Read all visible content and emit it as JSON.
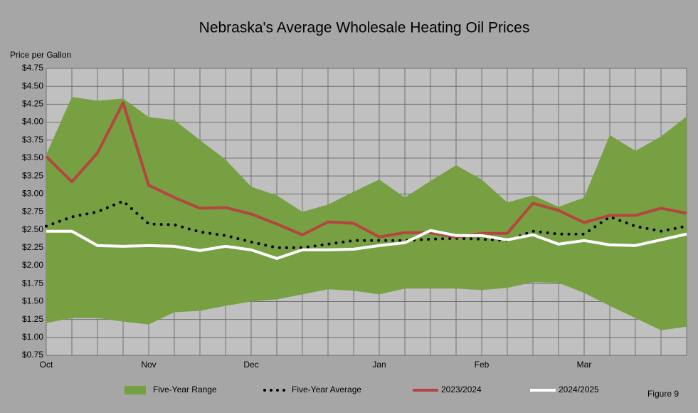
{
  "chart_data": {
    "type": "line",
    "title": "Nebraska's Average Wholesale Heating Oil Prices",
    "y_label": "Price per Gallon",
    "annotation": "Figure 9",
    "categories": [
      "Oct",
      null,
      null,
      null,
      "Nov",
      null,
      null,
      null,
      "Dec",
      null,
      null,
      null,
      null,
      "Jan",
      null,
      null,
      null,
      "Feb",
      null,
      null,
      null,
      "Mar",
      null,
      null,
      null,
      null
    ],
    "ylim": [
      0.75,
      4.75
    ],
    "yticks": [
      {
        "value": 0.75,
        "label": "$0.75"
      },
      {
        "value": 1.0,
        "label": "$1.00"
      },
      {
        "value": 1.25,
        "label": "$1.25"
      },
      {
        "value": 1.5,
        "label": "$1.50"
      },
      {
        "value": 1.75,
        "label": "$1.75"
      },
      {
        "value": 2.0,
        "label": "$2.00"
      },
      {
        "value": 2.25,
        "label": "$2.25"
      },
      {
        "value": 2.5,
        "label": "$2.50"
      },
      {
        "value": 2.75,
        "label": "$2.75"
      },
      {
        "value": 3.0,
        "label": "$3.00"
      },
      {
        "value": 3.25,
        "label": "$3.25"
      },
      {
        "value": 3.5,
        "label": "$3.50"
      },
      {
        "value": 3.75,
        "label": "$3.75"
      },
      {
        "value": 4.0,
        "label": "$4.00"
      },
      {
        "value": 4.25,
        "label": "$4.25"
      },
      {
        "value": 4.5,
        "label": "$4.50"
      },
      {
        "value": 4.75,
        "label": "$4.75"
      }
    ],
    "grid": true,
    "series": [
      {
        "name": "Five-Year Range",
        "color": "#77a043",
        "style": "band",
        "high": [
          3.55,
          4.35,
          4.3,
          4.33,
          4.07,
          4.03,
          3.75,
          3.48,
          3.1,
          2.98,
          2.75,
          2.85,
          3.03,
          3.2,
          2.95,
          3.18,
          3.4,
          3.2,
          2.88,
          2.98,
          2.82,
          2.95,
          3.82,
          3.6,
          3.8,
          4.08
        ],
        "low": [
          1.2,
          1.27,
          1.27,
          1.22,
          1.18,
          1.35,
          1.37,
          1.44,
          1.5,
          1.53,
          1.6,
          1.67,
          1.65,
          1.6,
          1.68,
          1.68,
          1.68,
          1.66,
          1.69,
          1.77,
          1.76,
          1.62,
          1.44,
          1.27,
          1.1,
          1.15
        ]
      },
      {
        "name": "Five-Year Average",
        "color": "#000000",
        "style": "dotted",
        "values": [
          2.55,
          2.68,
          2.75,
          2.9,
          2.58,
          2.57,
          2.47,
          2.42,
          2.33,
          2.25,
          2.25,
          2.3,
          2.35,
          2.35,
          2.35,
          2.37,
          2.38,
          2.37,
          2.35,
          2.48,
          2.44,
          2.44,
          2.68,
          2.55,
          2.48,
          2.55
        ]
      },
      {
        "name": "2023/2024",
        "color": "#b5453f",
        "style": "solid",
        "values": [
          3.52,
          3.17,
          3.57,
          4.27,
          3.12,
          2.95,
          2.8,
          2.81,
          2.72,
          2.58,
          2.43,
          2.61,
          2.59,
          2.4,
          2.46,
          2.46,
          2.4,
          2.45,
          2.45,
          2.87,
          2.77,
          2.6,
          2.7,
          2.7,
          2.8,
          2.73
        ]
      },
      {
        "name": "2024/2025",
        "color": "#ffffff",
        "style": "solid",
        "values": [
          2.48,
          2.48,
          2.28,
          2.27,
          2.28,
          2.27,
          2.21,
          2.27,
          2.22,
          2.1,
          2.22,
          2.22,
          2.23,
          2.28,
          2.32,
          2.49,
          2.42,
          2.42,
          2.36,
          2.43,
          2.3,
          2.35,
          2.29,
          2.28,
          2.36,
          2.44
        ]
      }
    ]
  }
}
